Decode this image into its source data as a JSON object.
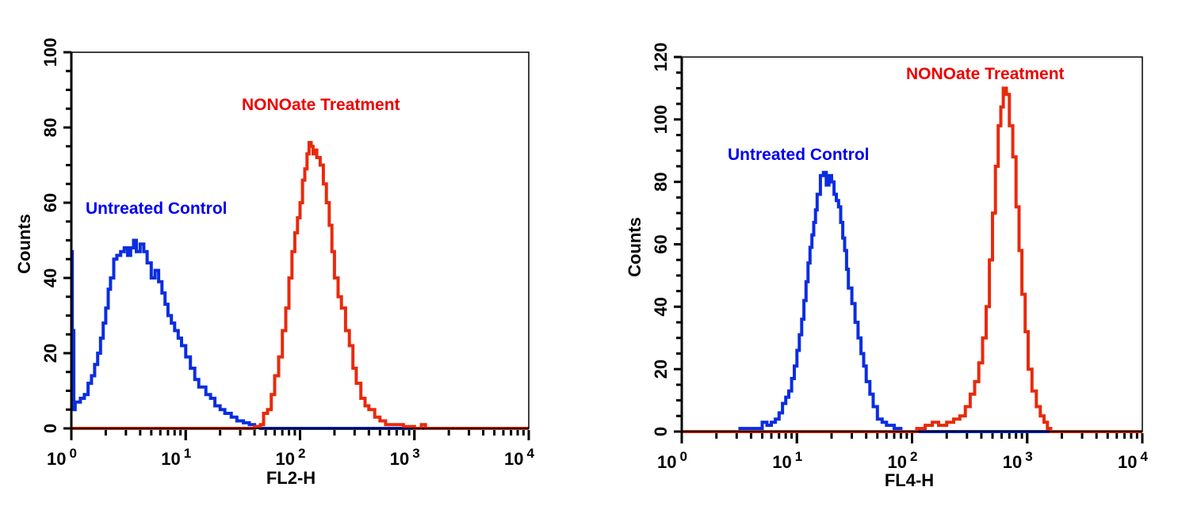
{
  "chart_data": [
    {
      "type": "line",
      "title": "",
      "xlabel": "FL2-H",
      "ylabel": "Counts",
      "xscale": "log",
      "xlim": [
        1,
        10000
      ],
      "ylim": [
        0,
        100
      ],
      "x_tick_labels": [
        {
          "base": "10",
          "exp": "0"
        },
        {
          "base": "10",
          "exp": "1"
        },
        {
          "base": "10",
          "exp": "2"
        },
        {
          "base": "10",
          "exp": "3"
        },
        {
          "base": "10",
          "exp": "4"
        }
      ],
      "y_ticks": [
        0,
        20,
        40,
        60,
        80,
        100
      ],
      "grid": false,
      "series": [
        {
          "name": "Untreated Control",
          "color": "#0a2de0",
          "x": [
            1.0,
            1.02,
            1.05,
            1.08,
            1.12,
            1.2,
            1.3,
            1.4,
            1.5,
            1.6,
            1.7,
            1.8,
            1.9,
            2.0,
            2.1,
            2.2,
            2.35,
            2.5,
            2.7,
            2.9,
            3.1,
            3.3,
            3.5,
            3.7,
            4.0,
            4.3,
            4.6,
            5.0,
            5.4,
            5.8,
            6.2,
            6.6,
            7.0,
            7.5,
            8.0,
            8.6,
            9.2,
            10,
            11,
            12,
            13,
            14,
            15,
            16.5,
            18,
            20,
            22,
            25,
            28,
            32,
            36,
            40,
            45,
            50,
            60,
            80,
            100,
            200,
            500,
            1000,
            10000
          ],
          "y": [
            47,
            26,
            5,
            7,
            7,
            8,
            9,
            12,
            14,
            17,
            20,
            24,
            28,
            32,
            37,
            40,
            45,
            46,
            47,
            48,
            46,
            48,
            50,
            47,
            49,
            47,
            44,
            40,
            42,
            39,
            36,
            33,
            30,
            28,
            26,
            24,
            22,
            19,
            16,
            13,
            11,
            11,
            9,
            8,
            6,
            5,
            4,
            3,
            2,
            1.5,
            1,
            0.5,
            0,
            0,
            0,
            0,
            0,
            0,
            0,
            0,
            0
          ]
        },
        {
          "name": "NONOate Treatment",
          "color": "#e82a0c",
          "x": [
            1,
            10,
            30,
            40,
            45,
            48,
            52,
            56,
            60,
            65,
            70,
            75,
            80,
            85,
            90,
            95,
            100,
            105,
            110,
            115,
            120,
            125,
            130,
            135,
            140,
            150,
            160,
            170,
            180,
            190,
            200,
            215,
            230,
            250,
            270,
            290,
            310,
            340,
            370,
            400,
            450,
            500,
            560,
            650,
            800,
            1000,
            1150,
            1250,
            1400,
            10000
          ],
          "y": [
            0,
            0,
            0,
            0.5,
            1,
            4,
            5,
            9,
            14,
            19,
            26,
            32,
            40,
            47,
            52,
            56,
            60,
            66,
            69,
            73,
            76,
            75,
            73,
            74,
            72,
            70,
            65,
            60,
            54,
            47,
            40,
            35,
            32,
            26,
            22,
            16,
            12,
            8,
            6,
            5,
            3,
            2,
            1,
            1,
            0.5,
            0,
            1,
            0,
            0,
            0
          ]
        }
      ],
      "annotations": [
        {
          "text": "Untreated Control",
          "color": "#0000ee",
          "near_series": "Untreated Control"
        },
        {
          "text": "NONOate Treatment",
          "color": "#ee0000",
          "near_series": "NONOate Treatment"
        }
      ]
    },
    {
      "type": "line",
      "title": "",
      "xlabel": "FL4-H",
      "ylabel": "Counts",
      "xscale": "log",
      "xlim": [
        1,
        10000
      ],
      "ylim": [
        0,
        120
      ],
      "x_tick_labels": [
        {
          "base": "10",
          "exp": "0"
        },
        {
          "base": "10",
          "exp": "1"
        },
        {
          "base": "10",
          "exp": "2"
        },
        {
          "base": "10",
          "exp": "3"
        },
        {
          "base": "10",
          "exp": "4"
        }
      ],
      "y_ticks": [
        0,
        20,
        40,
        60,
        80,
        100,
        120
      ],
      "grid": false,
      "series": [
        {
          "name": "Untreated Control",
          "color": "#0a2de0",
          "x": [
            1,
            3.0,
            3.2,
            4.5,
            5.0,
            5.5,
            6.0,
            6.5,
            7.0,
            7.5,
            8.0,
            8.5,
            9.0,
            9.5,
            10,
            10.5,
            11,
            11.5,
            12,
            12.5,
            13,
            13.5,
            14,
            14.5,
            15,
            16,
            17,
            18,
            19,
            20,
            21,
            22,
            23,
            24,
            25,
            26,
            27,
            28,
            30,
            32,
            34,
            36,
            38,
            40,
            43,
            46,
            50,
            55,
            60,
            70,
            80,
            100,
            10000
          ],
          "y": [
            0,
            0,
            1,
            1,
            3,
            2,
            3,
            4,
            6,
            9,
            11,
            13,
            17,
            21,
            26,
            31,
            36,
            42,
            48,
            54,
            59,
            63,
            67,
            71,
            76,
            82,
            83,
            79,
            82,
            80,
            76,
            74,
            72,
            67,
            62,
            58,
            52,
            46,
            41,
            35,
            30,
            25,
            21,
            16,
            12,
            8,
            4,
            3,
            2,
            1,
            0,
            0,
            0
          ]
        },
        {
          "name": "NONOate Treatment",
          "color": "#e82a0c",
          "x": [
            1,
            100,
            110,
            130,
            150,
            170,
            200,
            230,
            260,
            290,
            320,
            350,
            380,
            410,
            440,
            470,
            500,
            530,
            560,
            590,
            620,
            660,
            700,
            750,
            800,
            850,
            900,
            960,
            1020,
            1100,
            1200,
            1300,
            1400,
            1500,
            1600,
            10000
          ],
          "y": [
            0,
            0,
            1,
            2,
            3,
            2,
            3,
            4,
            5,
            8,
            12,
            16,
            22,
            30,
            40,
            55,
            70,
            85,
            98,
            104,
            110,
            108,
            98,
            88,
            72,
            58,
            44,
            32,
            20,
            13,
            8,
            5,
            3,
            1,
            0,
            0
          ]
        }
      ],
      "annotations": [
        {
          "text": "Untreated Control",
          "color": "#0000ee",
          "near_series": "Untreated Control"
        },
        {
          "text": "NONOate Treatment",
          "color": "#ee0000",
          "near_series": "NONOate Treatment"
        }
      ]
    }
  ]
}
